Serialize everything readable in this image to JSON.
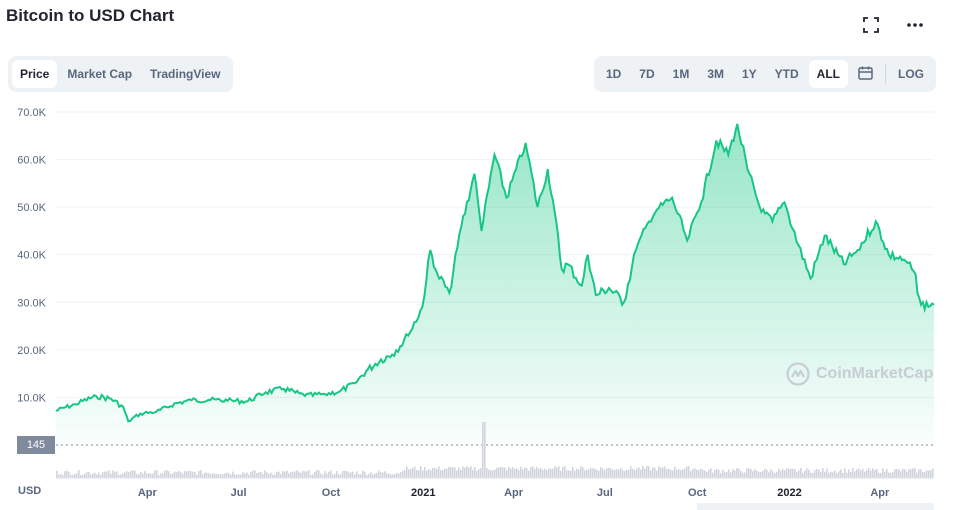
{
  "title": "Bitcoin to USD Chart",
  "icons": {
    "fullscreen": "fullscreen-icon",
    "more": "more-icon",
    "calendar": "calendar-icon"
  },
  "tabs": [
    {
      "label": "Price",
      "active": true
    },
    {
      "label": "Market Cap",
      "active": false
    },
    {
      "label": "TradingView",
      "active": false
    }
  ],
  "ranges": [
    {
      "label": "1D"
    },
    {
      "label": "7D"
    },
    {
      "label": "1M"
    },
    {
      "label": "3M"
    },
    {
      "label": "1Y"
    },
    {
      "label": "YTD"
    },
    {
      "label": "ALL",
      "active": true
    }
  ],
  "log_label": "LOG",
  "currency_label": "USD",
  "volume_badge": "145",
  "watermark": "CoinMarketCap",
  "colors": {
    "line": "#16c784",
    "fill_top": "#16c784",
    "volume": "#d0d4dc"
  },
  "chart_data": {
    "type": "area",
    "ylabel": "",
    "xlabel": "",
    "ylim": [
      0,
      70000
    ],
    "yticks": [
      10000,
      20000,
      30000,
      40000,
      50000,
      60000,
      70000
    ],
    "ytick_labels": [
      "10.0K",
      "20.0K",
      "30.0K",
      "40.0K",
      "50.0K",
      "60.0K",
      "70.0K"
    ],
    "xlim": [
      "2020-01-01",
      "2022-05-25"
    ],
    "xticks": [
      {
        "date": "2020-04-01",
        "label": "Apr",
        "bold": false
      },
      {
        "date": "2020-07-01",
        "label": "Jul",
        "bold": false
      },
      {
        "date": "2020-10-01",
        "label": "Oct",
        "bold": false
      },
      {
        "date": "2021-01-01",
        "label": "2021",
        "bold": true
      },
      {
        "date": "2021-04-01",
        "label": "Apr",
        "bold": false
      },
      {
        "date": "2021-07-01",
        "label": "Jul",
        "bold": false
      },
      {
        "date": "2021-10-01",
        "label": "Oct",
        "bold": false
      },
      {
        "date": "2022-01-01",
        "label": "2022",
        "bold": true
      },
      {
        "date": "2022-04-01",
        "label": "Apr",
        "bold": false
      }
    ],
    "grid": true,
    "series": [
      {
        "x": [
          "2020-01-01",
          "2020-01-20",
          "2020-02-10",
          "2020-02-25",
          "2020-03-08",
          "2020-03-13",
          "2020-03-25",
          "2020-04-10",
          "2020-04-30",
          "2020-05-15",
          "2020-06-01",
          "2020-06-20",
          "2020-07-10",
          "2020-07-28",
          "2020-08-15",
          "2020-09-05",
          "2020-09-25",
          "2020-10-10",
          "2020-10-25",
          "2020-11-05",
          "2020-11-20",
          "2020-12-01",
          "2020-12-17",
          "2020-12-31",
          "2021-01-08",
          "2021-01-15",
          "2021-01-27",
          "2021-02-08",
          "2021-02-21",
          "2021-02-28",
          "2021-03-13",
          "2021-03-25",
          "2021-04-13",
          "2021-04-25",
          "2021-05-05",
          "2021-05-12",
          "2021-05-19",
          "2021-05-25",
          "2021-06-08",
          "2021-06-14",
          "2021-06-22",
          "2021-07-05",
          "2021-07-20",
          "2021-08-01",
          "2021-08-14",
          "2021-08-22",
          "2021-09-06",
          "2021-09-21",
          "2021-10-05",
          "2021-10-20",
          "2021-11-01",
          "2021-11-10",
          "2021-11-20",
          "2021-12-04",
          "2021-12-15",
          "2021-12-27",
          "2022-01-10",
          "2022-01-22",
          "2022-02-05",
          "2022-02-24",
          "2022-03-10",
          "2022-03-28",
          "2022-04-10",
          "2022-04-25",
          "2022-05-05",
          "2022-05-12",
          "2022-05-25"
        ],
        "y": [
          7200,
          8600,
          10300,
          9700,
          8000,
          5000,
          6600,
          7000,
          8800,
          9400,
          9500,
          9300,
          9200,
          11100,
          11800,
          10300,
          10700,
          11300,
          13000,
          15500,
          18000,
          19000,
          23000,
          29000,
          41000,
          36000,
          32000,
          46000,
          57000,
          45000,
          61000,
          52000,
          63500,
          50000,
          58000,
          49000,
          37000,
          38000,
          33500,
          40000,
          31500,
          33000,
          30000,
          41000,
          47000,
          49500,
          52000,
          43000,
          51000,
          64000,
          61000,
          67500,
          58000,
          49000,
          47000,
          51000,
          42000,
          35000,
          44000,
          38000,
          41000,
          47000,
          40000,
          39000,
          36500,
          29500,
          29500
        ]
      }
    ]
  }
}
